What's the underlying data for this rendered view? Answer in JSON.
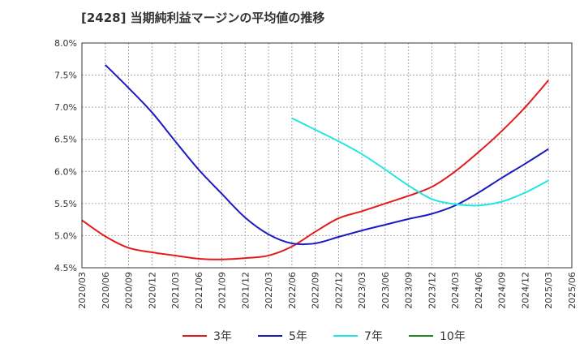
{
  "chart_data": {
    "type": "line",
    "title": "[2428]  当期純利益マージンの平均値の推移",
    "xlabel": "",
    "ylabel": "",
    "ylim": [
      4.5,
      8.0
    ],
    "y_ticks": [
      "8.0%",
      "7.5%",
      "7.0%",
      "6.5%",
      "6.0%",
      "5.5%",
      "5.0%",
      "4.5%"
    ],
    "y_tick_values": [
      8.0,
      7.5,
      7.0,
      6.5,
      6.0,
      5.5,
      5.0,
      4.5
    ],
    "x_ticks": [
      "2020/03",
      "2020/06",
      "2020/09",
      "2020/12",
      "2021/03",
      "2021/06",
      "2021/09",
      "2021/12",
      "2022/03",
      "2022/06",
      "2022/09",
      "2022/12",
      "2023/03",
      "2023/06",
      "2023/09",
      "2023/12",
      "2024/03",
      "2024/06",
      "2024/09",
      "2024/12",
      "2025/03",
      "2025/06"
    ],
    "grid": true,
    "legend_position": "bottom",
    "series": [
      {
        "name": "3年",
        "color": "#e31a1c",
        "x": [
          "2020/03",
          "2020/06",
          "2020/09",
          "2020/12",
          "2021/03",
          "2021/06",
          "2021/09",
          "2021/12",
          "2022/03",
          "2022/06",
          "2022/09",
          "2022/12",
          "2023/03",
          "2023/06",
          "2023/09",
          "2023/12",
          "2024/03",
          "2024/06",
          "2024/09",
          "2024/12",
          "2025/03"
        ],
        "values": [
          5.24,
          4.99,
          4.81,
          4.74,
          4.69,
          4.64,
          4.63,
          4.65,
          4.69,
          4.83,
          5.06,
          5.27,
          5.38,
          5.5,
          5.62,
          5.76,
          6.0,
          6.3,
          6.63,
          7.0,
          7.42
        ]
      },
      {
        "name": "5年",
        "color": "#1b1bbf",
        "x": [
          "2020/06",
          "2020/09",
          "2020/12",
          "2021/03",
          "2021/06",
          "2021/09",
          "2021/12",
          "2022/03",
          "2022/06",
          "2022/09",
          "2022/12",
          "2023/03",
          "2023/06",
          "2023/09",
          "2023/12",
          "2024/03",
          "2024/06",
          "2024/09",
          "2024/12",
          "2025/03"
        ],
        "values": [
          7.66,
          7.3,
          6.92,
          6.47,
          6.03,
          5.65,
          5.28,
          5.02,
          4.88,
          4.88,
          4.98,
          5.08,
          5.17,
          5.26,
          5.34,
          5.47,
          5.67,
          5.9,
          6.12,
          6.35
        ]
      },
      {
        "name": "7年",
        "color": "#22e5e5",
        "x": [
          "2022/06",
          "2022/09",
          "2022/12",
          "2023/03",
          "2023/06",
          "2023/09",
          "2023/12",
          "2024/03",
          "2024/06",
          "2024/09",
          "2024/12",
          "2025/03"
        ],
        "values": [
          6.83,
          6.65,
          6.47,
          6.27,
          6.03,
          5.78,
          5.57,
          5.49,
          5.47,
          5.53,
          5.67,
          5.86
        ]
      },
      {
        "name": "10年",
        "color": "#1e8a1e",
        "x": [],
        "values": []
      }
    ]
  }
}
